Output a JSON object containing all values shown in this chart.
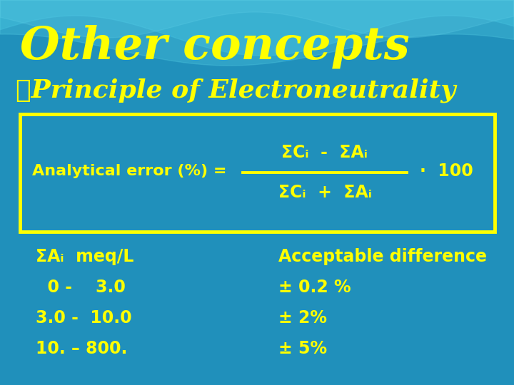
{
  "title": "Other concepts",
  "subtitle": "➤Principle of Electroneutrality",
  "title_color": "#FFFF00",
  "subtitle_color": "#FFFF00",
  "bg_color": "#2090bb",
  "box_color": "#FFFF00",
  "text_color": "#FFFF00",
  "formula_left": "Analytical error (%) = ",
  "formula_numerator": "ΣCᵢ  -  ΣAᵢ",
  "formula_denominator": "ΣCᵢ  +  ΣAᵢ",
  "formula_right": "·  100",
  "table_left": [
    "ΣAᵢ  meq/L",
    "  0 -    3.0",
    "3.0 -  10.0",
    "10. – 800."
  ],
  "table_right": [
    "Acceptable difference",
    "± 0.2 %",
    "± 2%",
    "± 5%"
  ],
  "wave_color1": "#3ab8d8",
  "wave_color2": "#50c8e0"
}
